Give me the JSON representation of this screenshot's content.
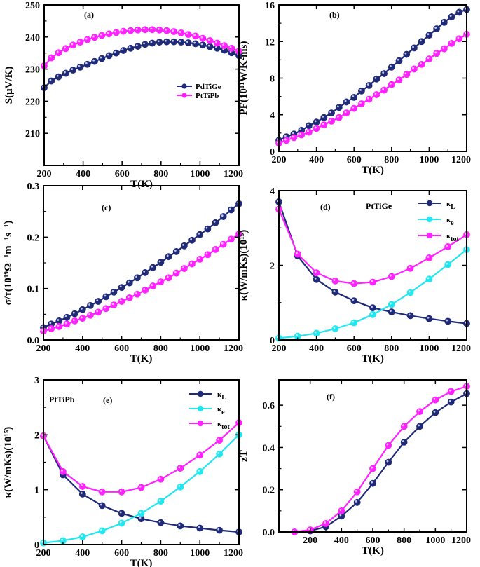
{
  "figure": {
    "colors": {
      "PdTiGe": "#1f2a78",
      "PtTiPb": "#ff22ff",
      "kappa_e": "#22e6f0",
      "axis": "#000000"
    }
  },
  "chart_data": [
    {
      "id": "a",
      "type": "line",
      "panel_label": "(a)",
      "xlabel": "T(K)",
      "ylabel": "S(μV/K)",
      "xlim": [
        200,
        1200
      ],
      "ylim": [
        200,
        250
      ],
      "xticks": [
        200,
        400,
        600,
        800,
        1000,
        1200
      ],
      "yticks": [
        210,
        220,
        230,
        240,
        250
      ],
      "x": [
        200,
        237,
        274,
        311,
        348,
        385,
        422,
        459,
        496,
        533,
        570,
        607,
        644,
        681,
        718,
        755,
        792,
        829,
        866,
        903,
        940,
        977,
        1014,
        1051,
        1088,
        1125,
        1162,
        1200
      ],
      "series": [
        {
          "name": "PdTiGe",
          "color": "#1f2a78",
          "values": [
            224.2,
            226.3,
            227.6,
            228.7,
            229.7,
            230.6,
            231.5,
            232.4,
            233.3,
            234.2,
            235.0,
            235.8,
            236.5,
            237.1,
            237.7,
            238.1,
            238.4,
            238.5,
            238.5,
            238.4,
            238.2,
            237.9,
            237.5,
            237.0,
            236.5,
            235.9,
            235.1,
            234.2
          ]
        },
        {
          "name": "PtTiPb",
          "color": "#ff22ff",
          "values": [
            231.0,
            233.5,
            235.1,
            236.4,
            237.5,
            238.4,
            239.2,
            239.9,
            240.5,
            241.0,
            241.4,
            241.8,
            242.0,
            242.2,
            242.3,
            242.3,
            242.2,
            242.0,
            241.7,
            241.3,
            240.8,
            240.3,
            239.6,
            238.9,
            238.1,
            237.3,
            236.5,
            235.6
          ]
        }
      ],
      "legend": {
        "position": "center-right",
        "entries": [
          "PdTiGe",
          "PtTiPb"
        ]
      }
    },
    {
      "id": "b",
      "type": "line",
      "panel_label": "(b)",
      "xlabel": "T(K)",
      "ylabel": "PF(10¹¹W/K²ms)",
      "xlim": [
        200,
        1200
      ],
      "ylim": [
        0,
        16
      ],
      "xticks": [
        200,
        400,
        600,
        800,
        1000,
        1200
      ],
      "yticks": [
        0,
        4,
        8,
        12,
        16
      ],
      "x": [
        200,
        240,
        280,
        320,
        360,
        400,
        440,
        480,
        520,
        560,
        600,
        640,
        680,
        720,
        760,
        800,
        840,
        880,
        920,
        960,
        1000,
        1040,
        1080,
        1120,
        1160,
        1200
      ],
      "series": [
        {
          "name": "PdTiGe",
          "color": "#1f2a78",
          "values": [
            1.2,
            1.6,
            1.9,
            2.3,
            2.8,
            3.2,
            3.7,
            4.2,
            4.8,
            5.4,
            5.9,
            6.6,
            7.2,
            7.9,
            8.5,
            9.2,
            9.9,
            10.6,
            11.3,
            12.0,
            12.7,
            13.4,
            14.1,
            14.7,
            15.2,
            15.5
          ]
        },
        {
          "name": "PtTiPb",
          "color": "#ff22ff",
          "values": [
            0.9,
            1.2,
            1.5,
            1.8,
            2.1,
            2.5,
            2.9,
            3.3,
            3.7,
            4.2,
            4.7,
            5.2,
            5.7,
            6.2,
            6.7,
            7.3,
            7.8,
            8.4,
            9.0,
            9.5,
            10.1,
            10.7,
            11.2,
            11.8,
            12.3,
            12.8
          ]
        }
      ]
    },
    {
      "id": "c",
      "type": "line",
      "panel_label": "(c)",
      "xlabel": "T(K)",
      "ylabel": "σ/τ(10¹⁹Ω⁻¹m⁻¹s⁻¹)",
      "xlim": [
        200,
        1200
      ],
      "ylim": [
        0,
        0.3
      ],
      "xticks": [
        200,
        400,
        600,
        800,
        1000,
        1200
      ],
      "yticks": [
        0.0,
        0.1,
        0.2,
        0.3
      ],
      "x": [
        200,
        240,
        280,
        320,
        360,
        400,
        440,
        480,
        520,
        560,
        600,
        640,
        680,
        720,
        760,
        800,
        840,
        880,
        920,
        960,
        1000,
        1040,
        1080,
        1120,
        1160,
        1200
      ],
      "series": [
        {
          "name": "PdTiGe",
          "color": "#1f2a78",
          "values": [
            0.024,
            0.031,
            0.037,
            0.044,
            0.051,
            0.059,
            0.067,
            0.075,
            0.084,
            0.093,
            0.102,
            0.111,
            0.121,
            0.131,
            0.141,
            0.151,
            0.162,
            0.172,
            0.183,
            0.194,
            0.205,
            0.216,
            0.228,
            0.24,
            0.253,
            0.265
          ]
        },
        {
          "name": "PtTiPb",
          "color": "#ff22ff",
          "values": [
            0.017,
            0.022,
            0.026,
            0.031,
            0.037,
            0.042,
            0.048,
            0.054,
            0.061,
            0.068,
            0.075,
            0.082,
            0.089,
            0.097,
            0.105,
            0.113,
            0.121,
            0.13,
            0.139,
            0.148,
            0.157,
            0.166,
            0.176,
            0.186,
            0.196,
            0.206
          ]
        }
      ]
    },
    {
      "id": "d",
      "type": "line",
      "panel_label": "(d)",
      "compound": "PtTiGe",
      "xlabel": "T(K)",
      "ylabel": "κ(W/mKs)(10¹⁵)",
      "xlim": [
        200,
        1200
      ],
      "ylim": [
        0,
        4
      ],
      "xticks": [
        200,
        400,
        600,
        800,
        1000,
        1200
      ],
      "yticks": [
        0,
        2,
        4
      ],
      "x": [
        200,
        300,
        400,
        500,
        600,
        700,
        800,
        900,
        1000,
        1100,
        1200
      ],
      "series": [
        {
          "name": "κL",
          "color": "#1f2a78",
          "values": [
            3.7,
            2.25,
            1.62,
            1.28,
            1.05,
            0.86,
            0.75,
            0.65,
            0.57,
            0.5,
            0.44
          ]
        },
        {
          "name": "κe",
          "color": "#22e6f0",
          "values": [
            0.05,
            0.1,
            0.18,
            0.3,
            0.46,
            0.68,
            0.95,
            1.27,
            1.63,
            2.02,
            2.42
          ]
        },
        {
          "name": "κtot",
          "color": "#ff22ff",
          "values": [
            3.5,
            2.3,
            1.8,
            1.58,
            1.51,
            1.55,
            1.7,
            1.92,
            2.2,
            2.5,
            2.82
          ]
        }
      ],
      "legend": {
        "position": "top-right",
        "entries": [
          "κL",
          "κe",
          "κtot"
        ]
      }
    },
    {
      "id": "e",
      "type": "line",
      "panel_label": "(e)",
      "compound": "PtTiPb",
      "xlabel": "T(K)",
      "ylabel": "κ(W/mKs)(10¹⁵)",
      "xlim": [
        200,
        1200
      ],
      "ylim": [
        0,
        3
      ],
      "xticks": [
        200,
        400,
        600,
        800,
        1000,
        1200
      ],
      "yticks": [
        0,
        1,
        2,
        3
      ],
      "x": [
        200,
        300,
        400,
        500,
        600,
        700,
        800,
        900,
        1000,
        1100,
        1200
      ],
      "series": [
        {
          "name": "κL",
          "color": "#1f2a78",
          "values": [
            1.98,
            1.27,
            0.92,
            0.71,
            0.57,
            0.47,
            0.4,
            0.34,
            0.3,
            0.26,
            0.23
          ]
        },
        {
          "name": "κe",
          "color": "#22e6f0",
          "values": [
            0.03,
            0.07,
            0.14,
            0.25,
            0.39,
            0.57,
            0.79,
            1.05,
            1.33,
            1.65,
            2.0
          ]
        },
        {
          "name": "κtot",
          "color": "#ff22ff",
          "values": [
            1.98,
            1.33,
            1.06,
            0.96,
            0.96,
            1.04,
            1.19,
            1.39,
            1.63,
            1.9,
            2.22
          ]
        }
      ],
      "legend": {
        "position": "top-right",
        "entries": [
          "κL",
          "κe",
          "κtot"
        ]
      }
    },
    {
      "id": "f",
      "type": "line",
      "panel_label": "(f)",
      "xlabel": "T(K)",
      "ylabel": "zT",
      "xlim": [
        0,
        1200
      ],
      "ylim": [
        0,
        0.72
      ],
      "xticks": [
        200,
        400,
        600,
        800,
        1000,
        1200
      ],
      "yticks": [
        0.0,
        0.2,
        0.4,
        0.6
      ],
      "x": [
        100,
        200,
        300,
        400,
        500,
        600,
        700,
        800,
        900,
        1000,
        1100,
        1200
      ],
      "series": [
        {
          "name": "PdTiGe",
          "color": "#1f2a78",
          "values": [
            0.0,
            0.005,
            0.025,
            0.075,
            0.14,
            0.23,
            0.33,
            0.425,
            0.5,
            0.565,
            0.615,
            0.655
          ]
        },
        {
          "name": "PtTiPb",
          "color": "#ff22ff",
          "values": [
            0.0,
            0.01,
            0.04,
            0.1,
            0.19,
            0.3,
            0.41,
            0.5,
            0.57,
            0.625,
            0.665,
            0.69
          ]
        }
      ]
    }
  ]
}
